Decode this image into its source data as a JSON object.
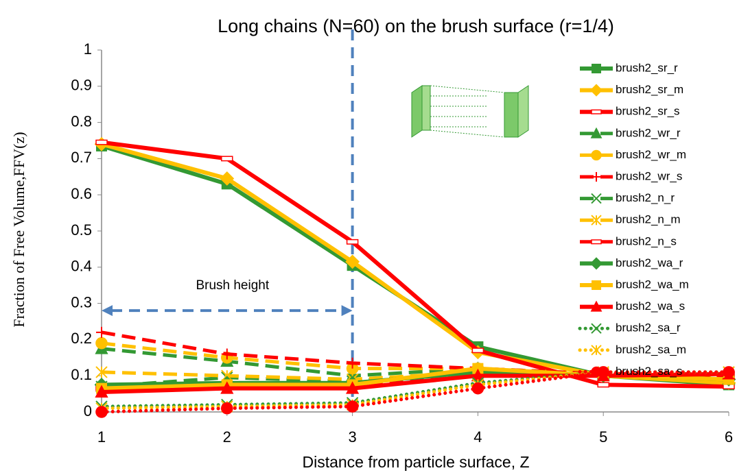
{
  "chart_data": {
    "type": "line",
    "title": "Long chains (N=60) on the brush surface (r=1/4)",
    "xlabel": "Distance from particle surface, Z",
    "ylabel": "Fraction of Free Volume,FFV(z)",
    "x": [
      1,
      2,
      3,
      4,
      5,
      6
    ],
    "xlim": [
      1,
      6
    ],
    "xticks": [
      1,
      2,
      3,
      4,
      5,
      6
    ],
    "ylim": [
      0,
      1
    ],
    "yticks": [
      0,
      0.1,
      0.2,
      0.3,
      0.4,
      0.5,
      0.6,
      0.7,
      0.8,
      0.9,
      1
    ],
    "grid": false,
    "legend": "right",
    "vline": {
      "x": 3,
      "color": "#4f81bd"
    },
    "arrow": {
      "x": [
        1,
        3
      ],
      "y": 0.28,
      "label": "Brush height",
      "color": "#4f81bd"
    },
    "series": [
      {
        "name": "brush2_sr_r",
        "color": "#339933",
        "marker": "square",
        "dash": "solid",
        "values": [
          0.735,
          0.63,
          0.405,
          0.18,
          0.1,
          0.075
        ]
      },
      {
        "name": "brush2_sr_m",
        "color": "#ffc000",
        "marker": "diamond",
        "dash": "solid",
        "values": [
          0.74,
          0.645,
          0.415,
          0.165,
          0.1,
          0.08
        ]
      },
      {
        "name": "brush2_sr_s",
        "color": "#ff0000",
        "marker": "bar",
        "dash": "solid",
        "values": [
          0.745,
          0.7,
          0.47,
          0.17,
          0.075,
          0.07
        ]
      },
      {
        "name": "brush2_wr_r",
        "color": "#339933",
        "marker": "triangle",
        "dash": "dashed",
        "values": [
          0.175,
          0.14,
          0.1,
          0.12,
          0.105,
          0.09
        ]
      },
      {
        "name": "brush2_wr_m",
        "color": "#ffc000",
        "marker": "circle",
        "dash": "dashed",
        "values": [
          0.19,
          0.15,
          0.12,
          0.12,
          0.105,
          0.095
        ]
      },
      {
        "name": "brush2_wr_s",
        "color": "#ff0000",
        "marker": "plus",
        "dash": "dashed",
        "values": [
          0.22,
          0.16,
          0.135,
          0.12,
          0.105,
          0.1
        ]
      },
      {
        "name": "brush2_n_r",
        "color": "#339933",
        "marker": "x",
        "dash": "dashed",
        "values": [
          0.07,
          0.095,
          0.085,
          0.11,
          0.105,
          0.09
        ]
      },
      {
        "name": "brush2_n_m",
        "color": "#ffc000",
        "marker": "star",
        "dash": "dashed",
        "values": [
          0.11,
          0.1,
          0.09,
          0.11,
          0.105,
          0.09
        ]
      },
      {
        "name": "brush2_n_s",
        "color": "#ff0000",
        "marker": "bar",
        "dash": "dashed",
        "values": [
          0.065,
          0.07,
          0.07,
          0.1,
          0.105,
          0.105
        ]
      },
      {
        "name": "brush2_wa_r",
        "color": "#339933",
        "marker": "diamond",
        "dash": "solid",
        "values": [
          0.075,
          0.08,
          0.08,
          0.11,
          0.1,
          0.09
        ]
      },
      {
        "name": "brush2_wa_m",
        "color": "#ffc000",
        "marker": "square",
        "dash": "solid",
        "values": [
          0.065,
          0.075,
          0.075,
          0.12,
          0.1,
          0.09
        ]
      },
      {
        "name": "brush2_wa_s",
        "color": "#ff0000",
        "marker": "triangle",
        "dash": "solid",
        "values": [
          0.055,
          0.065,
          0.065,
          0.1,
          0.1,
          0.105
        ]
      },
      {
        "name": "brush2_sa_r",
        "color": "#339933",
        "marker": "x",
        "dash": "dotted",
        "values": [
          0.015,
          0.02,
          0.025,
          0.08,
          0.11,
          0.11
        ]
      },
      {
        "name": "brush2_sa_m",
        "color": "#ffc000",
        "marker": "star",
        "dash": "dotted",
        "values": [
          0.01,
          0.015,
          0.02,
          0.075,
          0.11,
          0.11
        ]
      },
      {
        "name": "brush2_sa_s",
        "color": "#ff0000",
        "marker": "circle",
        "dash": "dotted",
        "values": [
          0,
          0.01,
          0.015,
          0.065,
          0.11,
          0.11
        ]
      }
    ]
  }
}
